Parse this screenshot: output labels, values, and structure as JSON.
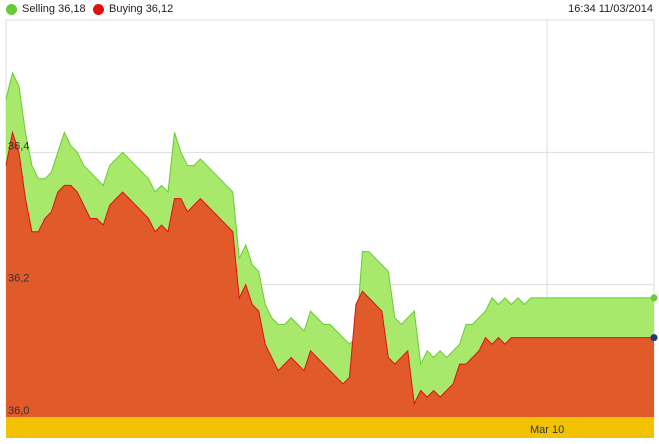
{
  "legend": {
    "selling_label": "Selling 36,18",
    "buying_label": "Buying 36,12"
  },
  "timestamp": "16:34 11/03/2014",
  "colors": {
    "selling": "#66cc33",
    "selling_fill": "#a8e86a",
    "buying": "#dd1111",
    "buying_fill": "#e05a2a",
    "axis_band": "#f2c200",
    "endpoint_buying": "#1a3c7a"
  },
  "chart_data": {
    "type": "area",
    "title": "",
    "xlabel": "",
    "ylabel": "",
    "ylim": [
      36.0,
      36.6
    ],
    "yticks": [
      "36,0",
      "36,2",
      "36,4"
    ],
    "ytick_values": [
      36.0,
      36.2,
      36.4
    ],
    "xticks": [
      "Mar 10"
    ],
    "xtick_positions": [
      83.5
    ],
    "grid": true,
    "x": [
      0,
      1,
      2,
      3,
      4,
      5,
      6,
      7,
      8,
      9,
      10,
      11,
      12,
      13,
      14,
      15,
      16,
      17,
      18,
      19,
      20,
      21,
      22,
      23,
      24,
      25,
      26,
      27,
      28,
      29,
      30,
      31,
      32,
      33,
      34,
      35,
      36,
      37,
      38,
      39,
      40,
      41,
      42,
      43,
      44,
      45,
      46,
      47,
      48,
      49,
      50,
      51,
      52,
      53,
      54,
      55,
      56,
      57,
      58,
      59,
      60,
      61,
      62,
      63,
      64,
      65,
      66,
      67,
      68,
      69,
      70,
      71,
      72,
      73,
      74,
      75,
      76,
      77,
      78,
      79,
      80,
      81,
      82,
      83,
      84,
      85,
      86,
      87,
      88,
      89,
      90,
      91,
      92,
      93,
      94,
      95,
      96,
      97,
      98,
      99,
      100
    ],
    "series": [
      {
        "name": "Selling",
        "values": [
          36.48,
          36.52,
          36.5,
          36.43,
          36.38,
          36.36,
          36.36,
          36.37,
          36.4,
          36.43,
          36.41,
          36.4,
          36.38,
          36.37,
          36.36,
          36.35,
          36.38,
          36.39,
          36.4,
          36.39,
          36.38,
          36.37,
          36.36,
          36.34,
          36.35,
          36.34,
          36.43,
          36.4,
          36.38,
          36.38,
          36.39,
          36.38,
          36.37,
          36.36,
          36.35,
          36.34,
          36.24,
          36.26,
          36.23,
          36.22,
          36.17,
          36.15,
          36.14,
          36.14,
          36.15,
          36.14,
          36.13,
          36.16,
          36.15,
          36.14,
          36.14,
          36.13,
          36.12,
          36.11,
          36.12,
          36.25,
          36.25,
          36.24,
          36.23,
          36.22,
          36.15,
          36.14,
          36.15,
          36.16,
          36.08,
          36.1,
          36.09,
          36.1,
          36.09,
          36.1,
          36.11,
          36.14,
          36.14,
          36.15,
          36.16,
          36.18,
          36.17,
          36.18,
          36.17,
          36.18,
          36.17,
          36.18,
          36.18,
          36.18,
          36.18,
          36.18,
          36.18,
          36.18,
          36.18,
          36.18,
          36.18,
          36.18,
          36.18,
          36.18,
          36.18,
          36.18,
          36.18,
          36.18,
          36.18,
          36.18,
          36.18
        ],
        "render_length": 78
      },
      {
        "name": "Buying",
        "values": [
          36.38,
          36.43,
          36.4,
          36.33,
          36.28,
          36.28,
          36.3,
          36.31,
          36.34,
          36.35,
          36.35,
          36.34,
          36.32,
          36.3,
          36.3,
          36.29,
          36.32,
          36.33,
          36.34,
          36.33,
          36.32,
          36.31,
          36.3,
          36.28,
          36.29,
          36.28,
          36.33,
          36.33,
          36.31,
          36.32,
          36.33,
          36.32,
          36.31,
          36.3,
          36.29,
          36.28,
          36.18,
          36.2,
          36.17,
          36.16,
          36.11,
          36.09,
          36.07,
          36.08,
          36.09,
          36.08,
          36.07,
          36.1,
          36.09,
          36.08,
          36.07,
          36.06,
          36.05,
          36.06,
          36.17,
          36.19,
          36.18,
          36.17,
          36.16,
          36.09,
          36.08,
          36.09,
          36.1,
          36.02,
          36.04,
          36.03,
          36.04,
          36.03,
          36.04,
          36.05,
          36.08,
          36.08,
          36.09,
          36.1,
          36.12,
          36.11,
          36.12,
          36.11,
          36.12,
          36.12,
          36.12,
          36.12,
          36.12,
          36.12,
          36.12,
          36.12,
          36.12,
          36.12,
          36.12,
          36.12,
          36.12,
          36.12,
          36.12,
          36.12,
          36.12,
          36.12,
          36.12,
          36.12,
          36.12,
          36.12,
          36.12
        ],
        "render_length": 77
      }
    ]
  }
}
